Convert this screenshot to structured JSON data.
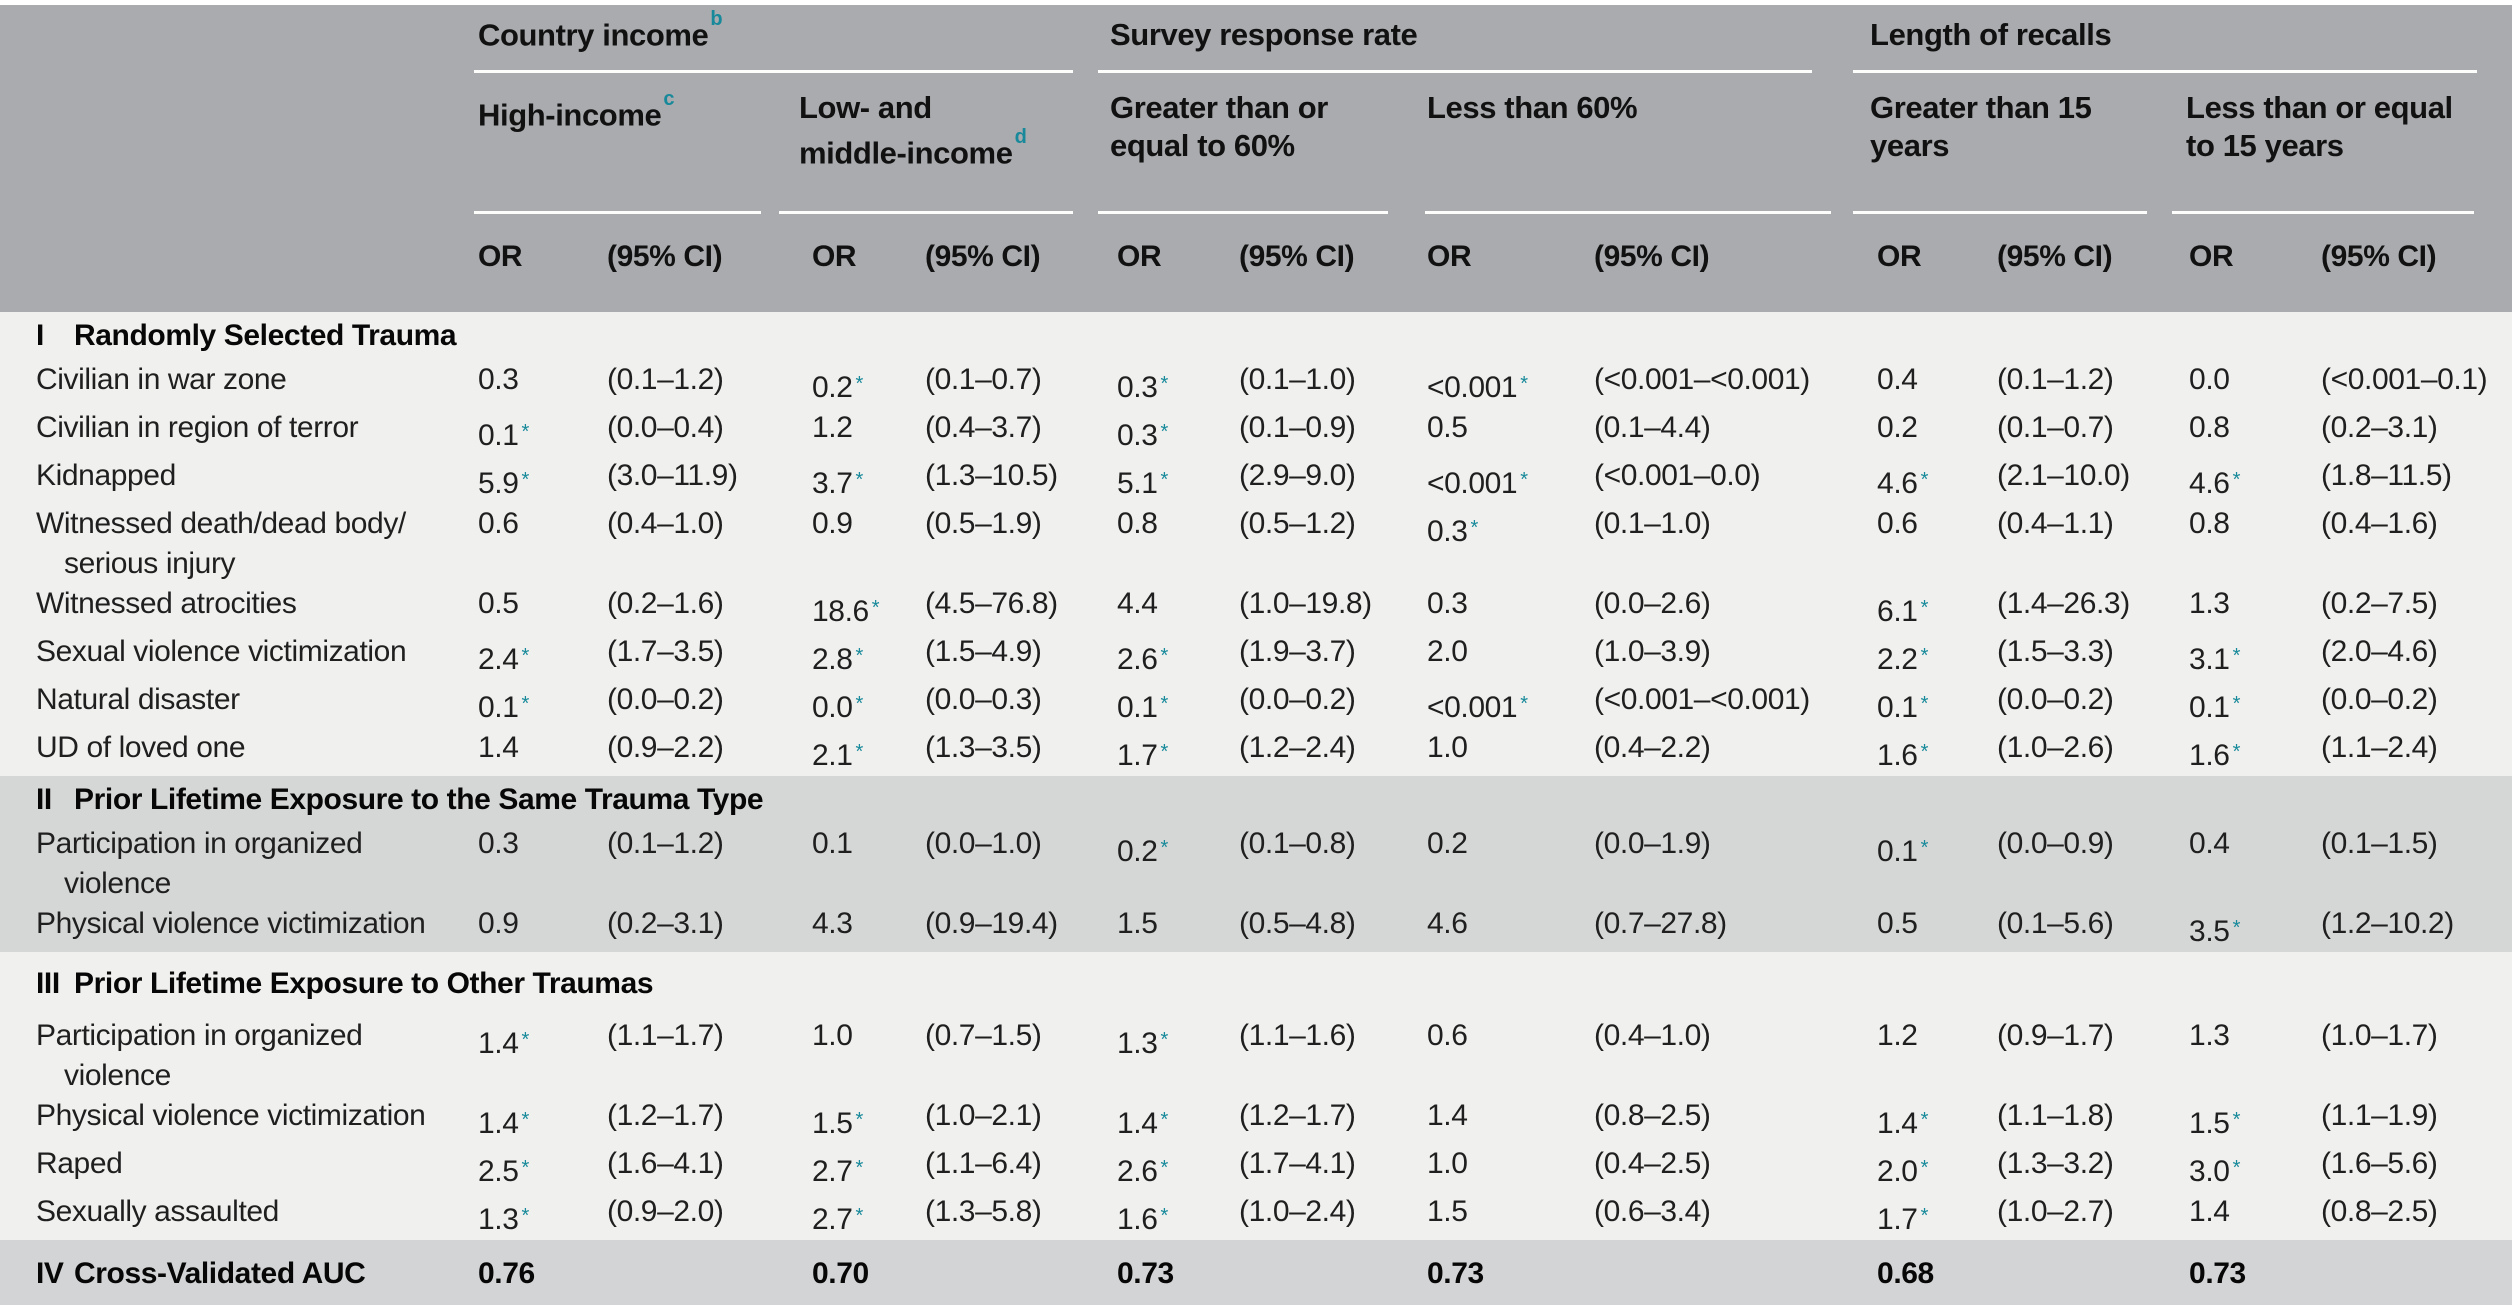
{
  "table": {
    "colors": {
      "header_bg": "#a9abae",
      "band_light": "#f0f0ee",
      "band_gray": "#d5d6d6",
      "auc_band": "#d3d4d5",
      "accent_teal": "#17899a",
      "rule_white": "#fdfdfc"
    },
    "header": {
      "groups": [
        {
          "text": "Country income",
          "sup": "b"
        },
        {
          "text": "Survey response rate",
          "sup": ""
        },
        {
          "text": "Length of recalls",
          "sup": ""
        }
      ],
      "subs": [
        {
          "line1": "High-income",
          "line2": "",
          "sup": "c"
        },
        {
          "line1": "Low- and",
          "line2": "middle-income",
          "sup": "d"
        },
        {
          "line1": "Greater than or",
          "line2": "equal to 60%",
          "sup": ""
        },
        {
          "line1": "Less than 60%",
          "line2": "",
          "sup": ""
        },
        {
          "line1": "Greater than 15",
          "line2": "years",
          "sup": ""
        },
        {
          "line1": "Less than or equal",
          "line2": "to 15 years",
          "sup": ""
        }
      ],
      "or_label": "OR",
      "ci_label": "(95% CI)"
    },
    "sections": [
      {
        "numeral": "I",
        "title": "Randomly Selected Trauma",
        "rows": [
          {
            "label_lines": [
              "Civilian in war zone"
            ],
            "cells": [
              "0.3",
              "(0.1–1.2)",
              "0.2*",
              "(0.1–0.7)",
              "0.3*",
              "(0.1–1.0)",
              "<0.001*",
              "(<0.001–<0.001)",
              "0.4",
              "(0.1–1.2)",
              "0.0",
              "(<0.001–0.1)"
            ]
          },
          {
            "label_lines": [
              "Civilian in region of terror"
            ],
            "cells": [
              "0.1*",
              "(0.0–0.4)",
              "1.2",
              "(0.4–3.7)",
              "0.3*",
              "(0.1–0.9)",
              "0.5",
              "(0.1–4.4)",
              "0.2",
              "(0.1–0.7)",
              "0.8",
              "(0.2–3.1)"
            ]
          },
          {
            "label_lines": [
              "Kidnapped"
            ],
            "cells": [
              "5.9*",
              "(3.0–11.9)",
              "3.7*",
              "(1.3–10.5)",
              "5.1*",
              "(2.9–9.0)",
              "<0.001*",
              "(<0.001–0.0)",
              "4.6*",
              "(2.1–10.0)",
              "4.6*",
              "(1.8–11.5)"
            ]
          },
          {
            "label_lines": [
              "Witnessed death/dead body/",
              "serious injury"
            ],
            "cells": [
              "0.6",
              "(0.4–1.0)",
              "0.9",
              "(0.5–1.9)",
              "0.8",
              "(0.5–1.2)",
              "0.3*",
              "(0.1–1.0)",
              "0.6",
              "(0.4–1.1)",
              "0.8",
              "(0.4–1.6)"
            ]
          },
          {
            "label_lines": [
              "Witnessed atrocities"
            ],
            "cells": [
              "0.5",
              "(0.2–1.6)",
              "18.6*",
              "(4.5–76.8)",
              "4.4",
              "(1.0–19.8)",
              "0.3",
              "(0.0–2.6)",
              "6.1*",
              "(1.4–26.3)",
              "1.3",
              "(0.2–7.5)"
            ]
          },
          {
            "label_lines": [
              "Sexual violence victimization"
            ],
            "cells": [
              "2.4*",
              "(1.7–3.5)",
              "2.8*",
              "(1.5–4.9)",
              "2.6*",
              "(1.9–3.7)",
              "2.0",
              "(1.0–3.9)",
              "2.2*",
              "(1.5–3.3)",
              "3.1*",
              "(2.0–4.6)"
            ]
          },
          {
            "label_lines": [
              "Natural disaster"
            ],
            "cells": [
              "0.1*",
              "(0.0–0.2)",
              "0.0*",
              "(0.0–0.3)",
              "0.1*",
              "(0.0–0.2)",
              "<0.001*",
              "(<0.001–<0.001)",
              "0.1*",
              "(0.0–0.2)",
              "0.1*",
              "(0.0–0.2)"
            ]
          },
          {
            "label_lines": [
              "UD of loved one"
            ],
            "cells": [
              "1.4",
              "(0.9–2.2)",
              "2.1*",
              "(1.3–3.5)",
              "1.7*",
              "(1.2–2.4)",
              "1.0",
              "(0.4–2.2)",
              "1.6*",
              "(1.0–2.6)",
              "1.6*",
              "(1.1–2.4)"
            ]
          }
        ]
      },
      {
        "numeral": "II",
        "title": "Prior Lifetime Exposure to the Same Trauma Type",
        "rows": [
          {
            "label_lines": [
              "Participation in organized",
              "violence"
            ],
            "cells": [
              "0.3",
              "(0.1–1.2)",
              "0.1",
              "(0.0–1.0)",
              "0.2*",
              "(0.1–0.8)",
              "0.2",
              "(0.0–1.9)",
              "0.1*",
              "(0.0–0.9)",
              "0.4",
              "(0.1–1.5)"
            ]
          },
          {
            "label_lines": [
              "Physical violence victimization"
            ],
            "cells": [
              "0.9",
              "(0.2–3.1)",
              "4.3",
              "(0.9–19.4)",
              "1.5",
              "(0.5–4.8)",
              "4.6",
              "(0.7–27.8)",
              "0.5",
              "(0.1–5.6)",
              "3.5*",
              "(1.2–10.2)"
            ]
          }
        ]
      },
      {
        "numeral": "III",
        "title": "Prior Lifetime Exposure to Other Traumas",
        "rows": [
          {
            "label_lines": [
              "Participation in organized",
              "violence"
            ],
            "cells": [
              "1.4*",
              "(1.1–1.7)",
              "1.0",
              "(0.7–1.5)",
              "1.3*",
              "(1.1–1.6)",
              "0.6",
              "(0.4–1.0)",
              "1.2",
              "(0.9–1.7)",
              "1.3",
              "(1.0–1.7)"
            ]
          },
          {
            "label_lines": [
              "Physical violence victimization"
            ],
            "cells": [
              "1.4*",
              "(1.2–1.7)",
              "1.5*",
              "(1.0–2.1)",
              "1.4*",
              "(1.2–1.7)",
              "1.4",
              "(0.8–2.5)",
              "1.4*",
              "(1.1–1.8)",
              "1.5*",
              "(1.1–1.9)"
            ]
          },
          {
            "label_lines": [
              "Raped"
            ],
            "cells": [
              "2.5*",
              "(1.6–4.1)",
              "2.7*",
              "(1.1–6.4)",
              "2.6*",
              "(1.7–4.1)",
              "1.0",
              "(0.4–2.5)",
              "2.0*",
              "(1.3–3.2)",
              "3.0*",
              "(1.6–5.6)"
            ]
          },
          {
            "label_lines": [
              "Sexually assaulted"
            ],
            "cells": [
              "1.3*",
              "(0.9–2.0)",
              "2.7*",
              "(1.3–5.8)",
              "1.6*",
              "(1.0–2.4)",
              "1.5",
              "(0.6–3.4)",
              "1.7*",
              "(1.0–2.7)",
              "1.4",
              "(0.8–2.5)"
            ]
          }
        ]
      },
      {
        "numeral": "IV",
        "title": "Cross-Validated AUC",
        "values": [
          "0.76",
          "0.70",
          "0.73",
          "0.73",
          "0.68",
          "0.73"
        ]
      }
    ]
  }
}
